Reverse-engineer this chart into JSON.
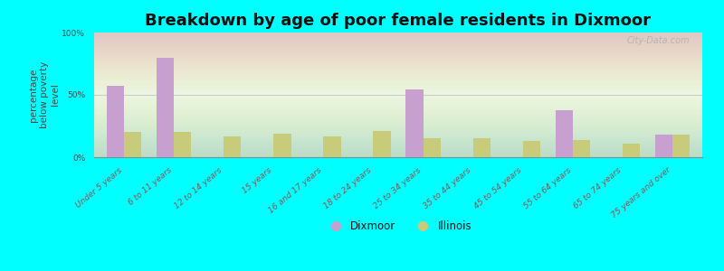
{
  "title": "Breakdown by age of poor female residents in Dixmoor",
  "categories": [
    "Under 5 years",
    "6 to 11 years",
    "12 to 14 years",
    "15 years",
    "16 and 17 years",
    "18 to 24 years",
    "25 to 34 years",
    "35 to 44 years",
    "45 to 54 years",
    "55 to 64 years",
    "65 to 74 years",
    "75 years and over"
  ],
  "dixmoor_values": [
    57,
    80,
    0,
    0,
    0,
    0,
    54,
    0,
    0,
    38,
    0,
    18
  ],
  "illinois_values": [
    20,
    20,
    17,
    19,
    17,
    21,
    15,
    15,
    13,
    14,
    11,
    18
  ],
  "dixmoor_color": "#c8a0d0",
  "illinois_color": "#c8cb7a",
  "ylabel": "percentage\nbelow poverty\nlevel",
  "background_color": "#00ffff",
  "ylim": [
    0,
    100
  ],
  "yticks": [
    0,
    50,
    100
  ],
  "ytick_labels": [
    "0%",
    "50%",
    "100%"
  ],
  "bar_width": 0.35,
  "title_fontsize": 13,
  "axis_label_fontsize": 7.5,
  "tick_fontsize": 6.5,
  "legend_label_dixmoor": "Dixmoor",
  "legend_label_illinois": "Illinois",
  "watermark": "City-Data.com",
  "xtick_color": "#885555"
}
